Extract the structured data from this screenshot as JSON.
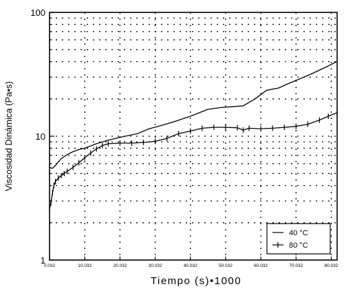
{
  "chart_data": {
    "type": "line",
    "xlabel": "Tiempo (s)•1000",
    "ylabel": "Viscosidad Dinámica (Pa•s)",
    "yscale": "log",
    "ylim": [
      1,
      100
    ],
    "xlim": [
      0,
      98
    ],
    "y_ticks": [
      {
        "value": 1,
        "label": "1"
      },
      {
        "value": 10,
        "label": "10"
      },
      {
        "value": 100,
        "label": "100"
      }
    ],
    "x_ticks": [
      {
        "value": 0,
        "label": "0.032"
      },
      {
        "value": 12,
        "label": "10.032"
      },
      {
        "value": 24,
        "label": "20.032"
      },
      {
        "value": 36,
        "label": "30.032"
      },
      {
        "value": 48,
        "label": "40.032"
      },
      {
        "value": 60,
        "label": "50.032"
      },
      {
        "value": 72,
        "label": "60.032"
      },
      {
        "value": 84,
        "label": "70.032"
      },
      {
        "value": 96,
        "label": "80.032"
      }
    ],
    "grid": true,
    "legend_position": "bottom-right",
    "series": [
      {
        "name": "40 °C",
        "marker": "none",
        "points": [
          [
            0,
            5.6
          ],
          [
            1,
            5.5
          ],
          [
            2,
            5.8
          ],
          [
            3,
            6.2
          ],
          [
            4,
            6.6
          ],
          [
            6,
            7.1
          ],
          [
            8,
            7.5
          ],
          [
            10,
            7.8
          ],
          [
            12,
            8.0
          ],
          [
            16,
            8.7
          ],
          [
            20,
            9.3
          ],
          [
            24,
            9.8
          ],
          [
            30,
            10.5
          ],
          [
            34,
            11.5
          ],
          [
            38,
            12.2
          ],
          [
            42,
            13.0
          ],
          [
            48,
            14.5
          ],
          [
            54,
            16.5
          ],
          [
            58,
            17.0
          ],
          [
            62,
            17.3
          ],
          [
            66,
            17.6
          ],
          [
            70,
            20.0
          ],
          [
            74,
            23.5
          ],
          [
            78,
            24.5
          ],
          [
            82,
            27.0
          ],
          [
            86,
            29.5
          ],
          [
            90,
            32.5
          ],
          [
            94,
            36.0
          ],
          [
            98,
            40.0
          ]
        ]
      },
      {
        "name": "80 °C",
        "marker": "plus",
        "points": [
          [
            0,
            2.6
          ],
          [
            0.5,
            2.9
          ],
          [
            1,
            3.5
          ],
          [
            1.5,
            4.0
          ],
          [
            2,
            4.3
          ],
          [
            3,
            4.6
          ],
          [
            4,
            4.8
          ],
          [
            5,
            5.0
          ],
          [
            6,
            5.2
          ],
          [
            8,
            5.6
          ],
          [
            10,
            6.1
          ],
          [
            12,
            6.7
          ],
          [
            14,
            7.3
          ],
          [
            16,
            7.9
          ],
          [
            18,
            8.4
          ],
          [
            20,
            8.7
          ],
          [
            24,
            8.8
          ],
          [
            28,
            8.8
          ],
          [
            32,
            8.9
          ],
          [
            36,
            9.1
          ],
          [
            40,
            9.6
          ],
          [
            44,
            10.5
          ],
          [
            48,
            11.0
          ],
          [
            52,
            11.6
          ],
          [
            56,
            11.8
          ],
          [
            60,
            11.8
          ],
          [
            64,
            11.7
          ],
          [
            66,
            11.2
          ],
          [
            68,
            11.6
          ],
          [
            72,
            11.5
          ],
          [
            76,
            11.6
          ],
          [
            80,
            11.8
          ],
          [
            84,
            12.0
          ],
          [
            88,
            12.5
          ],
          [
            92,
            13.5
          ],
          [
            95,
            14.5
          ],
          [
            98,
            15.5
          ]
        ]
      }
    ]
  }
}
